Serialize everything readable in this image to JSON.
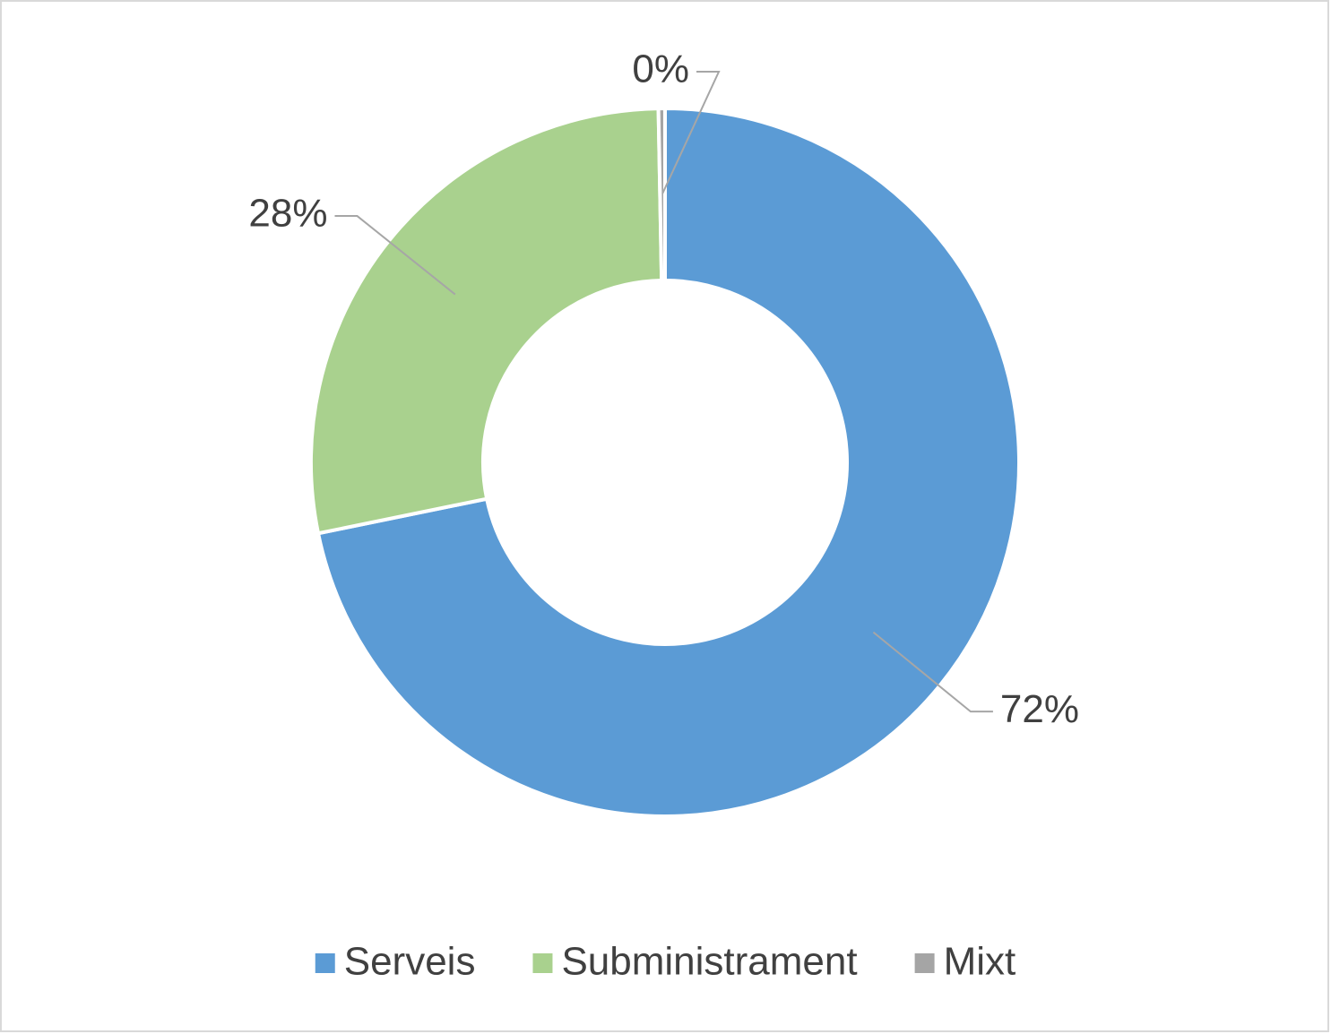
{
  "chart_data": {
    "type": "donut",
    "categories": [
      "Serveis",
      "Subministrament",
      "Mixt"
    ],
    "values": [
      72,
      28,
      0.3
    ],
    "value_labels": [
      "72%",
      "28%",
      "0%"
    ],
    "colors": [
      "#5b9bd5",
      "#a9d18e",
      "#a5a5a5"
    ],
    "legend": "bottom"
  }
}
